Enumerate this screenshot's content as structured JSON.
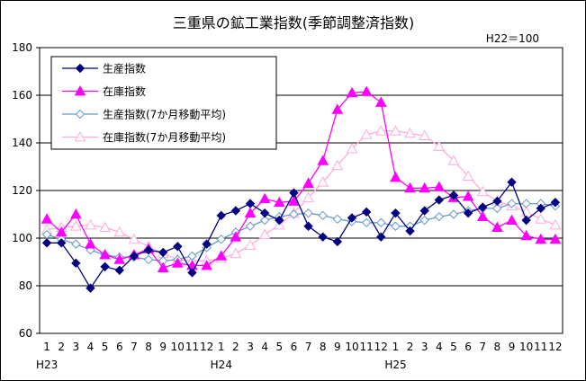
{
  "chart_data": {
    "type": "line",
    "title": "三重県の鉱工業指数(季節調整済指数)",
    "base_note": "H22＝100",
    "ylim": [
      60,
      180
    ],
    "yticks": [
      60,
      80,
      100,
      120,
      140,
      160,
      180
    ],
    "grid": true,
    "legend_position": "top-left",
    "categories": [
      "1",
      "2",
      "3",
      "4",
      "5",
      "6",
      "7",
      "8",
      "9",
      "10",
      "11",
      "12",
      "1",
      "2",
      "3",
      "4",
      "5",
      "6",
      "7",
      "8",
      "9",
      "10",
      "11",
      "12",
      "1",
      "2",
      "3",
      "4",
      "5",
      "6",
      "7",
      "8",
      "9",
      "10",
      "11",
      "12"
    ],
    "year_labels": [
      {
        "label": "H23",
        "index": 0
      },
      {
        "label": "H24",
        "index": 12
      },
      {
        "label": "H25",
        "index": 24
      }
    ],
    "series": [
      {
        "name": "生産指数",
        "color": "#000080",
        "marker": "diamond-filled",
        "values": [
          98,
          98,
          89.5,
          79,
          88,
          86.5,
          92.5,
          95,
          94,
          96.5,
          85.5,
          97.5,
          109.5,
          111.5,
          114.5,
          110.5,
          107.5,
          119,
          105,
          100.5,
          98.5,
          108.5,
          111,
          100.5,
          110.5,
          103,
          111.5,
          116,
          118,
          110.5,
          113,
          115.5,
          123.5,
          107.5,
          112.5,
          115
        ]
      },
      {
        "name": "在庫指数",
        "color": "#ff00ff",
        "marker": "triangle-filled",
        "values": [
          108,
          102.5,
          110,
          97.5,
          93,
          91,
          93,
          95.5,
          87.5,
          89.5,
          88.5,
          88.5,
          92.5,
          100.5,
          110.5,
          116.5,
          115,
          115.5,
          123,
          132.5,
          154,
          161,
          161.5,
          157,
          125.5,
          121,
          121,
          121.5,
          117,
          117.5,
          109,
          104.5,
          107.5,
          101,
          99.5,
          99.5
        ]
      },
      {
        "name": "生産指数(7か月移動平均)",
        "color": "#6699cc",
        "marker": "diamond-open",
        "values": [
          101.5,
          99.5,
          97.5,
          95,
          93,
          92,
          92,
          91,
          90.5,
          91,
          92.5,
          96,
          99.5,
          102.5,
          105,
          107.5,
          109,
          110,
          110.5,
          109.5,
          108,
          107,
          106.5,
          106.5,
          105,
          105,
          107.5,
          109,
          110,
          111.5,
          112.5,
          112.5,
          114.5,
          114.5,
          114.5,
          113.5
        ]
      },
      {
        "name": "在庫指数(7か月移動平均)",
        "color": "#ffaadd",
        "marker": "triangle-open",
        "values": [
          103.5,
          104.5,
          105,
          105.5,
          104.5,
          102.5,
          99.5,
          96.5,
          93.5,
          91,
          90.5,
          90.5,
          91.5,
          93.5,
          97,
          101.5,
          105.5,
          110.5,
          117,
          123.5,
          130.5,
          137.5,
          143.5,
          145,
          145,
          144,
          143,
          138.5,
          132.5,
          126,
          119.5,
          115.5,
          113.5,
          111,
          108,
          105.5
        ]
      }
    ]
  }
}
